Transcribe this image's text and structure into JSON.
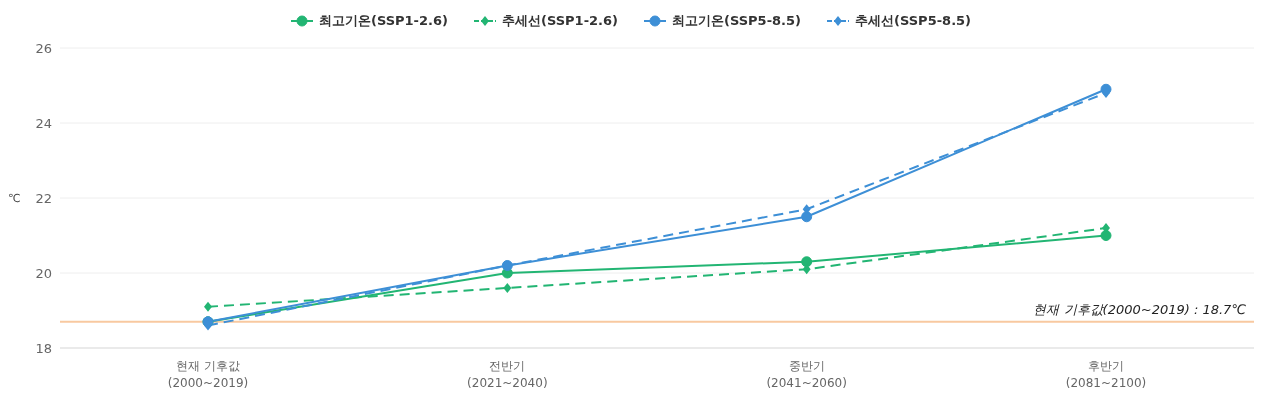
{
  "chart_data": {
    "type": "line",
    "categories": [
      "현재 기후값\n(2000~2019)",
      "전반기\n(2021~2040)",
      "중반기\n(2041~2060)",
      "후반기\n(2081~2100)"
    ],
    "ylabel": "℃",
    "ylim": [
      18,
      26
    ],
    "yticks": [
      18,
      20,
      22,
      24,
      26
    ],
    "grid": "y",
    "legend": "top",
    "series": [
      {
        "name": "최고기온(SSP1-2.6)",
        "color": "#22b573",
        "values": [
          18.7,
          20.0,
          20.3,
          21.0
        ],
        "marker": "circle",
        "line_style": "solid"
      },
      {
        "name": "추세선(SSP1-2.6)",
        "color": "#22b573",
        "values": [
          19.1,
          19.6,
          20.1,
          21.2
        ],
        "marker": "diamond",
        "line_style": "dashed"
      },
      {
        "name": "최고기온(SSP5-8.5)",
        "color": "#3d8fd6",
        "values": [
          18.7,
          20.2,
          21.5,
          24.9
        ],
        "marker": "circle",
        "line_style": "solid"
      },
      {
        "name": "추세선(SSP5-8.5)",
        "color": "#3d8fd6",
        "values": [
          18.6,
          20.2,
          21.7,
          24.8
        ],
        "marker": "diamond",
        "line_style": "dashed"
      }
    ],
    "ref_lines": [
      {
        "axis": "y",
        "value": 18.7,
        "label": "현재 기후값(2000~2019) : 18.7℃",
        "color": "#f8c9a0"
      }
    ]
  }
}
